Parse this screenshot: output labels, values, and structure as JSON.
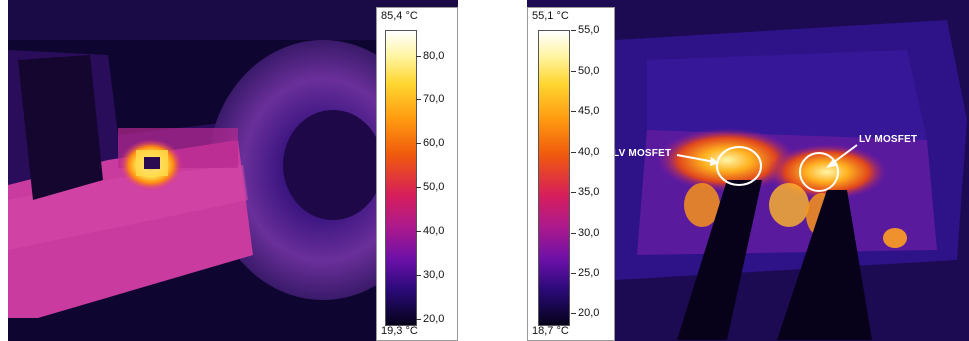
{
  "left_panel": {
    "scale": {
      "max_label": "85,4 °C",
      "min_label": "19,3 °C",
      "ticks": [
        "80,0",
        "70,0",
        "60,0",
        "50,0",
        "40,0",
        "30,0",
        "20,0"
      ]
    }
  },
  "right_panel": {
    "scale": {
      "max_label": "55,1 °C",
      "min_label": "18,7 °C",
      "ticks": [
        "55,0",
        "50,0",
        "45,0",
        "40,0",
        "35,0",
        "30,0",
        "25,0",
        "20,0"
      ]
    },
    "annotations": {
      "left_label": "LV MOSFET",
      "right_label": "LV MOSFET"
    }
  }
}
